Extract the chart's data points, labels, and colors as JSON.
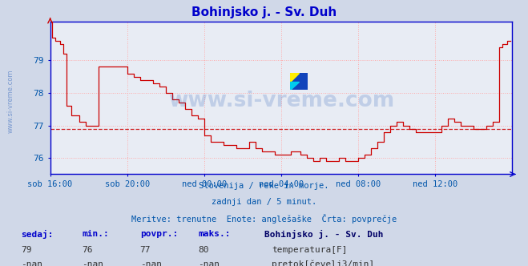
{
  "title": "Bohinjsko j. - Sv. Duh",
  "title_color": "#0000cc",
  "bg_color": "#d0d8e8",
  "plot_bg_color": "#e8ecf4",
  "grid_color": "#ffaaaa",
  "border_color": "#0000cc",
  "avg_line_color": "#cc0000",
  "avg_value": 76.9,
  "ylim": [
    75.5,
    80.2
  ],
  "yticks": [
    76,
    77,
    78,
    79
  ],
  "xlabel_color": "#0055aa",
  "xtick_labels": [
    "sob 16:00",
    "sob 20:00",
    "ned 00:00",
    "ned 04:00",
    "ned 08:00",
    "ned 12:00"
  ],
  "line_color": "#cc0000",
  "subtitle1": "Slovenija / reke in morje.",
  "subtitle2": "zadnji dan / 5 minut.",
  "subtitle3": "Meritve: trenutne  Enote: anglešaške  Črta: povprečje",
  "subtitle_color": "#0055aa",
  "legend_title": "Bohinjsko j. - Sv. Duh",
  "stats_headers": [
    "sedaj:",
    "min.:",
    "povpr.:",
    "maks.:"
  ],
  "stats_temp": [
    "79",
    "76",
    "77",
    "80"
  ],
  "stats_pretok": [
    "-nan",
    "-nan",
    "-nan",
    "-nan"
  ],
  "stats_header_color": "#0000cc",
  "stats_value_color": "#333333",
  "temp_label": "temperatura[F]",
  "pretok_label": "pretok[čevelj3/min]",
  "temp_color": "#cc0000",
  "pretok_color": "#00aa00",
  "watermark_text": "www.si-vreme.com",
  "watermark_color": "#3366bb",
  "side_watermark_color": "#3366bb",
  "n_points": 288
}
